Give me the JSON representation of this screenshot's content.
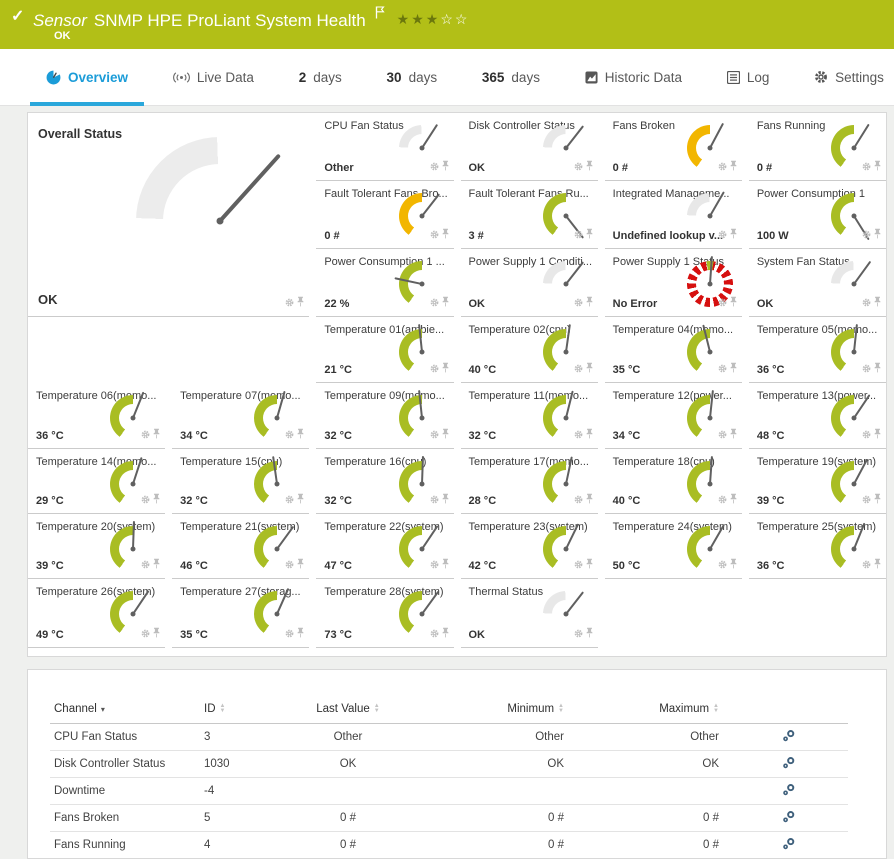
{
  "banner": {
    "check_icon": "✓",
    "sensor_label": "Sensor",
    "title": "SNMP HPE ProLiant System Health",
    "status": "OK",
    "priority_filled": 3,
    "priority_total": 5,
    "color": "#b2bf17"
  },
  "tabs": [
    {
      "id": "overview",
      "strong": "",
      "label": "Overview",
      "icon": "overview-gauge-icon",
      "active": true
    },
    {
      "id": "live-data",
      "strong": "",
      "label": "Live Data",
      "icon": "live-data-icon",
      "active": false
    },
    {
      "id": "2-days",
      "strong": "2",
      "label": "days",
      "icon": "",
      "active": false
    },
    {
      "id": "30-days",
      "strong": "30",
      "label": "days",
      "icon": "",
      "active": false
    },
    {
      "id": "365-days",
      "strong": "365",
      "label": "days",
      "icon": "",
      "active": false
    },
    {
      "id": "historic-data",
      "strong": "",
      "label": "Historic Data",
      "icon": "historic-data-icon",
      "active": false
    },
    {
      "id": "log",
      "strong": "",
      "label": "Log",
      "icon": "log-icon",
      "active": false
    },
    {
      "id": "settings",
      "strong": "",
      "label": "Settings",
      "icon": "settings-gear-icon",
      "active": false
    }
  ],
  "colors": {
    "gauge_green": "#a9bd23",
    "gauge_yellow": "#f2b600",
    "gauge_red": "#d6100f",
    "gauge_gray": "#e8e8e8",
    "needle": "#606060",
    "tab_active": "#1b9cd8",
    "accent_blue": "#2aa7db"
  },
  "gauges": {
    "types": {
      "overall": {
        "segments": [
          [
            272,
            358,
            "#ececec"
          ],
          [
            2,
            88,
            "#a9bd23"
          ],
          [
            92,
            178,
            "#f2b600"
          ],
          [
            182,
            268,
            "#d6100f"
          ]
        ]
      },
      "status-4seg": {
        "segments": [
          [
            272,
            358,
            "#e8e8e8"
          ],
          [
            2,
            58,
            "#a9bd23"
          ],
          [
            62,
            168,
            "#f2b600"
          ],
          [
            200,
            268,
            "#d6100f"
          ]
        ]
      },
      "status-mgmt": {
        "segments": [
          [
            272,
            358,
            "#e8e8e8"
          ],
          [
            2,
            58,
            "#a9bd23"
          ],
          [
            62,
            148,
            "#f2b600"
          ],
          [
            152,
            238,
            "#d6100f"
          ]
        ]
      },
      "arc-yellow": {
        "segments": [
          [
            215,
            360,
            "#f2b600"
          ],
          [
            0,
            145,
            "#f2b600"
          ]
        ]
      },
      "arc-green": {
        "segments": [
          [
            215,
            360,
            "#a9bd23"
          ],
          [
            0,
            145,
            "#a9bd23"
          ]
        ]
      },
      "temp": {
        "segments": [
          [
            215,
            360,
            "#a9bd23"
          ],
          [
            0,
            128,
            "#a9bd23"
          ],
          [
            131,
            149,
            "#d6100f"
          ]
        ]
      },
      "psu-condition": {
        "segments": [
          [
            272,
            358,
            "#e8e8e8"
          ],
          [
            2,
            88,
            "#a9bd23"
          ],
          [
            92,
            175,
            "#d6100f"
          ],
          [
            185,
            268,
            "#d6100f"
          ]
        ]
      },
      "fan-status": {
        "segments": [
          [
            272,
            358,
            "#e8e8e8"
          ],
          [
            2,
            34,
            "#a9bd23"
          ],
          [
            118,
            168,
            "#f2b600"
          ],
          [
            185,
            265,
            "#d6100f"
          ]
        ]
      },
      "thermal": {
        "segments": [
          [
            272,
            358,
            "#e8e8e8"
          ],
          [
            2,
            58,
            "#a9bd23"
          ],
          [
            120,
            170,
            "#f2b600"
          ],
          [
            185,
            262,
            "#d6100f"
          ]
        ]
      },
      "dashed-red": {
        "dashed": true,
        "dash_color": "#d6100f",
        "notch_color": "#a9bd23"
      }
    },
    "overall_tile": {
      "title": "Overall Status",
      "value": "OK",
      "type": "overall",
      "needle_deg": 42
    },
    "tiles": [
      {
        "title": "CPU Fan Status",
        "value": "Other",
        "type": "status-4seg",
        "needle_deg": 33,
        "col": 3,
        "row": 1
      },
      {
        "title": "Disk Controller Status",
        "value": "OK",
        "type": "status-4seg",
        "needle_deg": 38,
        "col": 4,
        "row": 1
      },
      {
        "title": "Fans Broken",
        "value": "0 #",
        "type": "arc-yellow",
        "needle_deg": 28,
        "col": 5,
        "row": 1
      },
      {
        "title": "Fans Running",
        "value": "0 #",
        "type": "arc-green",
        "needle_deg": 32,
        "col": 6,
        "row": 1
      },
      {
        "title": "Fault Tolerant Fans Bro...",
        "value": "0 #",
        "type": "arc-yellow",
        "needle_deg": 38,
        "col": 3,
        "row": 2
      },
      {
        "title": "Fault Tolerant Fans Ru...",
        "value": "3 #",
        "type": "arc-green",
        "needle_deg": 142,
        "col": 4,
        "row": 2
      },
      {
        "title": "Integrated Manageme...",
        "value": "Undefined lookup v...",
        "type": "status-mgmt",
        "needle_deg": 30,
        "col": 5,
        "row": 2
      },
      {
        "title": "Power Consumption 1",
        "value": "100 W",
        "type": "arc-green",
        "needle_deg": 148,
        "col": 6,
        "row": 2
      },
      {
        "title": "Power Consumption 1 ...",
        "value": "22 %",
        "type": "arc-green",
        "needle_deg": -78,
        "col": 3,
        "row": 3
      },
      {
        "title": "Power Supply 1 Conditi...",
        "value": "OK",
        "type": "psu-condition",
        "needle_deg": 38,
        "col": 4,
        "row": 3
      },
      {
        "title": "Power Supply 1 Status",
        "value": "No Error",
        "type": "dashed-red",
        "needle_deg": 4,
        "col": 5,
        "row": 3
      },
      {
        "title": "System Fan Status",
        "value": "OK",
        "type": "fan-status",
        "needle_deg": 36,
        "col": 6,
        "row": 3
      },
      {
        "title": "Temperature 01(ambie...",
        "value": "21 °C",
        "type": "temp",
        "needle_deg": -6,
        "col": 3,
        "row": 4
      },
      {
        "title": "Temperature 02(cpu)",
        "value": "40 °C",
        "type": "temp",
        "needle_deg": 8,
        "col": 4,
        "row": 4
      },
      {
        "title": "Temperature 04(memo...",
        "value": "35 °C",
        "type": "temp",
        "needle_deg": -14,
        "col": 5,
        "row": 4
      },
      {
        "title": "Temperature 05(memo...",
        "value": "36 °C",
        "type": "temp",
        "needle_deg": 6,
        "col": 6,
        "row": 4
      },
      {
        "title": "Temperature 06(memo...",
        "value": "36 °C",
        "type": "temp",
        "needle_deg": 22,
        "col": 1,
        "row": 5
      },
      {
        "title": "Temperature 07(memo...",
        "value": "34 °C",
        "type": "temp",
        "needle_deg": 16,
        "col": 2,
        "row": 5
      },
      {
        "title": "Temperature 09(memo...",
        "value": "32 °C",
        "type": "temp",
        "needle_deg": -6,
        "col": 3,
        "row": 5
      },
      {
        "title": "Temperature 11(memo...",
        "value": "32 °C",
        "type": "temp",
        "needle_deg": 14,
        "col": 4,
        "row": 5
      },
      {
        "title": "Temperature 12(power...",
        "value": "34 °C",
        "type": "temp",
        "needle_deg": 6,
        "col": 5,
        "row": 5
      },
      {
        "title": "Temperature 13(power...",
        "value": "48 °C",
        "type": "temp",
        "needle_deg": 34,
        "col": 6,
        "row": 5
      },
      {
        "title": "Temperature 14(memo...",
        "value": "29 °C",
        "type": "temp",
        "needle_deg": 18,
        "col": 1,
        "row": 6
      },
      {
        "title": "Temperature 15(cpu)",
        "value": "32 °C",
        "type": "temp",
        "needle_deg": -8,
        "col": 2,
        "row": 6
      },
      {
        "title": "Temperature 16(cpu)",
        "value": "32 °C",
        "type": "temp",
        "needle_deg": 2,
        "col": 3,
        "row": 6
      },
      {
        "title": "Temperature 17(memo...",
        "value": "28 °C",
        "type": "temp",
        "needle_deg": 12,
        "col": 4,
        "row": 6
      },
      {
        "title": "Temperature 18(cpu)",
        "value": "40 °C",
        "type": "temp",
        "needle_deg": 4,
        "col": 5,
        "row": 6
      },
      {
        "title": "Temperature 19(system)",
        "value": "39 °C",
        "type": "temp",
        "needle_deg": 28,
        "col": 6,
        "row": 6
      },
      {
        "title": "Temperature 20(system)",
        "value": "39 °C",
        "type": "temp",
        "needle_deg": 2,
        "col": 1,
        "row": 7
      },
      {
        "title": "Temperature 21(system)",
        "value": "46 °C",
        "type": "temp",
        "needle_deg": 36,
        "col": 2,
        "row": 7
      },
      {
        "title": "Temperature 22(system)",
        "value": "47 °C",
        "type": "temp",
        "needle_deg": 34,
        "col": 3,
        "row": 7
      },
      {
        "title": "Temperature 23(system)",
        "value": "42 °C",
        "type": "temp",
        "needle_deg": 26,
        "col": 4,
        "row": 7
      },
      {
        "title": "Temperature 24(system)",
        "value": "50 °C",
        "type": "temp",
        "needle_deg": 30,
        "col": 5,
        "row": 7
      },
      {
        "title": "Temperature 25(system)",
        "value": "36 °C",
        "type": "temp",
        "needle_deg": 22,
        "col": 6,
        "row": 7
      },
      {
        "title": "Temperature 26(system)",
        "value": "49 °C",
        "type": "temp",
        "needle_deg": 34,
        "col": 1,
        "row": 8
      },
      {
        "title": "Temperature 27(storag...",
        "value": "35 °C",
        "type": "temp",
        "needle_deg": 24,
        "col": 2,
        "row": 8
      },
      {
        "title": "Temperature 28(system)",
        "value": "73 °C",
        "type": "temp",
        "needle_deg": 36,
        "col": 3,
        "row": 8
      },
      {
        "title": "Thermal Status",
        "value": "OK",
        "type": "thermal",
        "needle_deg": 38,
        "col": 4,
        "row": 8
      }
    ]
  },
  "table": {
    "headers": [
      {
        "label": "Channel",
        "sort": "desc"
      },
      {
        "label": "ID",
        "sort": "both"
      },
      {
        "label": "Last Value",
        "sort": "both"
      },
      {
        "label": "Minimum",
        "sort": "both"
      },
      {
        "label": "Maximum",
        "sort": "both"
      }
    ],
    "rows": [
      {
        "channel": "CPU Fan Status",
        "id": "3",
        "last": "Other",
        "min": "Other",
        "max": "Other"
      },
      {
        "channel": "Disk Controller Status",
        "id": "1030",
        "last": "OK",
        "min": "OK",
        "max": "OK"
      },
      {
        "channel": "Downtime",
        "id": "-4",
        "last": "",
        "min": "",
        "max": ""
      },
      {
        "channel": "Fans Broken",
        "id": "5",
        "last": "0 #",
        "min": "0 #",
        "max": "0 #"
      },
      {
        "channel": "Fans Running",
        "id": "4",
        "last": "0 #",
        "min": "0 #",
        "max": "0 #"
      }
    ]
  }
}
